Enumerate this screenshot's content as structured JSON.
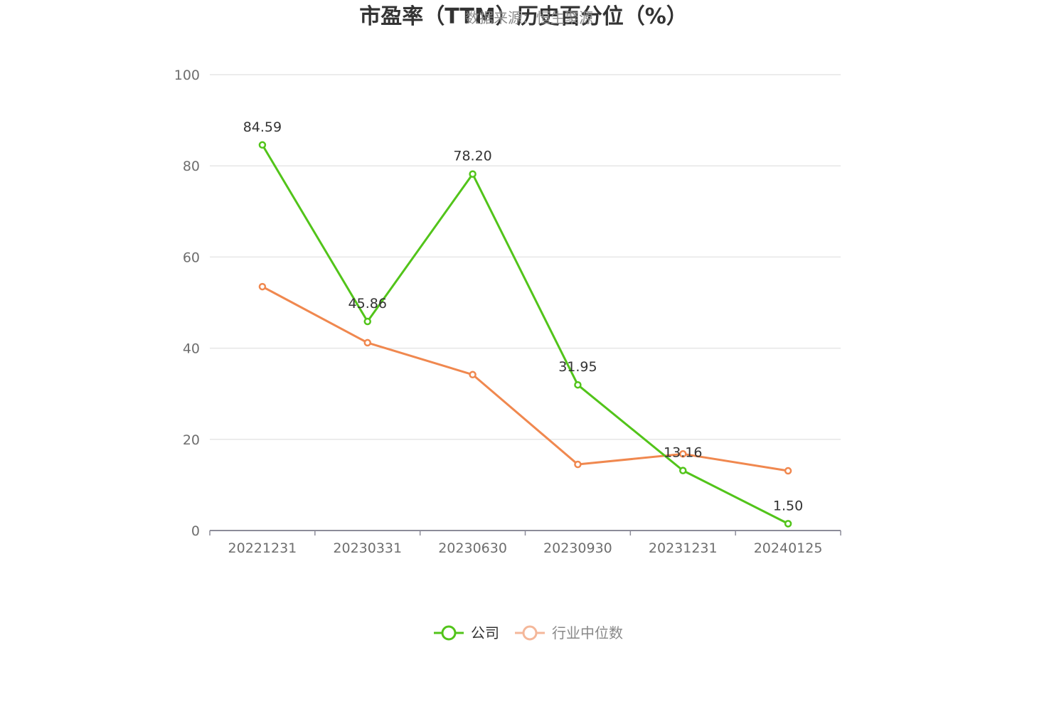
{
  "chart_data": {
    "type": "line",
    "title": "市盈率（TTM）历史百分位（%）",
    "subtitle": "数据来源：恒生聚源",
    "categories": [
      "20221231",
      "20230331",
      "20230630",
      "20230930",
      "20231231",
      "20240125"
    ],
    "ylim": [
      0,
      100
    ],
    "yticks": [
      0,
      20,
      40,
      60,
      80,
      100
    ],
    "grid": true,
    "legend_position": "bottom-center",
    "series": [
      {
        "name": "公司",
        "color": "#52c41a",
        "values": [
          84.59,
          45.86,
          78.2,
          31.95,
          13.16,
          1.5
        ],
        "labels": [
          "84.59",
          "45.86",
          "78.20",
          "31.95",
          "13.16",
          "1.50"
        ],
        "show_labels": true
      },
      {
        "name": "行业中位数",
        "color": "#f0884f",
        "legend_color": "#f4b79a",
        "values": [
          53.5,
          41.2,
          34.2,
          14.5,
          16.8,
          13.1
        ],
        "show_labels": false
      }
    ]
  }
}
